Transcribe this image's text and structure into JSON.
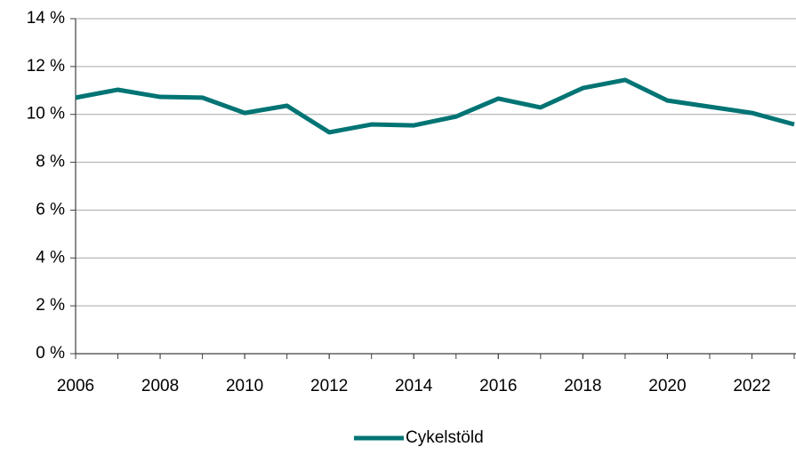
{
  "chart_data": {
    "type": "line",
    "x": [
      2006,
      2007,
      2008,
      2009,
      2010,
      2011,
      2012,
      2013,
      2014,
      2015,
      2016,
      2017,
      2018,
      2019,
      2020,
      2021,
      2022,
      2023
    ],
    "series": [
      {
        "name": "Cykelstöld",
        "color": "#007474",
        "values": [
          10.7,
          11.03,
          10.73,
          10.7,
          10.06,
          10.36,
          9.25,
          9.58,
          9.54,
          9.91,
          10.66,
          10.29,
          11.1,
          11.44,
          10.58,
          10.32,
          10.06,
          9.58
        ]
      }
    ],
    "xlim": [
      2006,
      2023
    ],
    "xticks": [
      2006,
      2008,
      2010,
      2012,
      2014,
      2016,
      2018,
      2020,
      2022
    ],
    "ylim": [
      0,
      14
    ],
    "yticks": [
      {
        "value": 0,
        "label": "0 %"
      },
      {
        "value": 2,
        "label": "2 %"
      },
      {
        "value": 4,
        "label": "4 %"
      },
      {
        "value": 6,
        "label": "6 %"
      },
      {
        "value": 8,
        "label": "8 %"
      },
      {
        "value": 10,
        "label": "10 %"
      },
      {
        "value": 12,
        "label": "12 %"
      },
      {
        "value": 14,
        "label": "14 %"
      }
    ],
    "grid": true,
    "legend": "bottom"
  }
}
